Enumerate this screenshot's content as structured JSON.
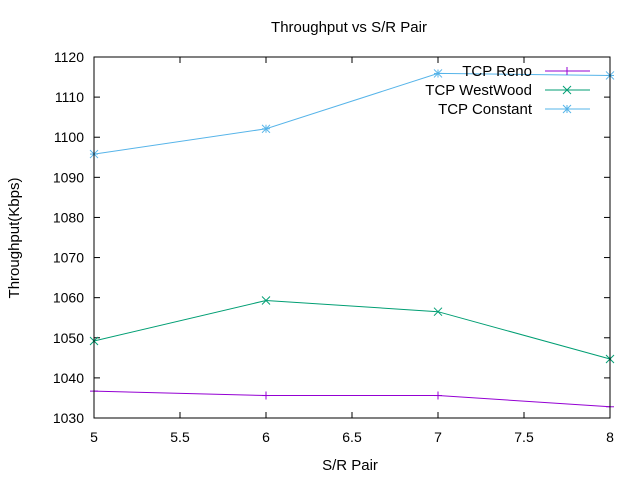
{
  "chart_data": {
    "type": "line",
    "title": "Throughput vs S/R Pair",
    "xlabel": "S/R Pair",
    "ylabel": "Throughput(Kbps)",
    "xlim": [
      5,
      8
    ],
    "ylim": [
      1030,
      1120
    ],
    "xticks": [
      5,
      5.5,
      6,
      6.5,
      7,
      7.5,
      8
    ],
    "xtick_labels": [
      "5",
      "5.5",
      "6",
      "6.5",
      "7",
      "7.5",
      "8"
    ],
    "yticks": [
      1030,
      1040,
      1050,
      1060,
      1070,
      1080,
      1090,
      1100,
      1110,
      1120
    ],
    "ytick_labels": [
      "1030",
      "1040",
      "1050",
      "1060",
      "1070",
      "1080",
      "1090",
      "1100",
      "1110",
      "1120"
    ],
    "grid": false,
    "legend": "top-right",
    "series": [
      {
        "name": "TCP Reno",
        "color": "#9400d3",
        "marker": "plus",
        "x": [
          5,
          6,
          7,
          8
        ],
        "y": [
          1036.7,
          1035.6,
          1035.6,
          1032.8
        ]
      },
      {
        "name": "TCP WestWood",
        "color": "#009e73",
        "marker": "cross",
        "x": [
          5,
          6,
          7,
          8
        ],
        "y": [
          1049.2,
          1059.3,
          1056.5,
          1044.7
        ]
      },
      {
        "name": "TCP Constant",
        "color": "#56b4e9",
        "marker": "star",
        "x": [
          5,
          6,
          7,
          8
        ],
        "y": [
          1095.8,
          1102.1,
          1115.9,
          1115.4
        ]
      }
    ]
  }
}
